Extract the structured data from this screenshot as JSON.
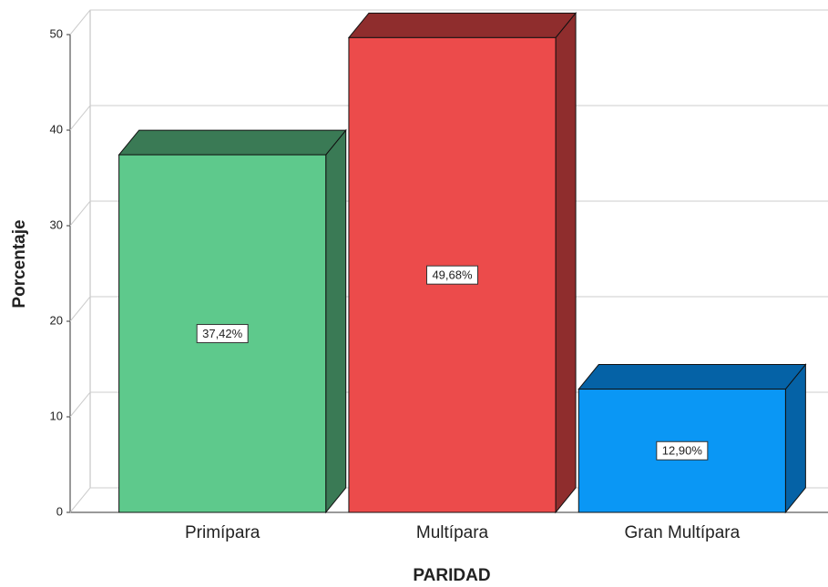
{
  "chart_data": {
    "type": "bar3d",
    "categories": [
      "Primípara",
      "Multípara",
      "Gran Multípara"
    ],
    "values": [
      37.42,
      49.68,
      12.9
    ],
    "value_labels": [
      "37,42%",
      "49,68%",
      "12,90%"
    ],
    "colors": [
      "#5ec98c",
      "#ec4b4b",
      "#0a97f5"
    ],
    "side_colors": [
      "#3a7a55",
      "#8f2d2d",
      "#0562a6"
    ],
    "xlabel": "PARIDAD",
    "ylabel": "Porcentaje",
    "ylim": [
      0,
      50
    ],
    "yticks": [
      0,
      10,
      20,
      30,
      40,
      50
    ],
    "grid": true
  }
}
